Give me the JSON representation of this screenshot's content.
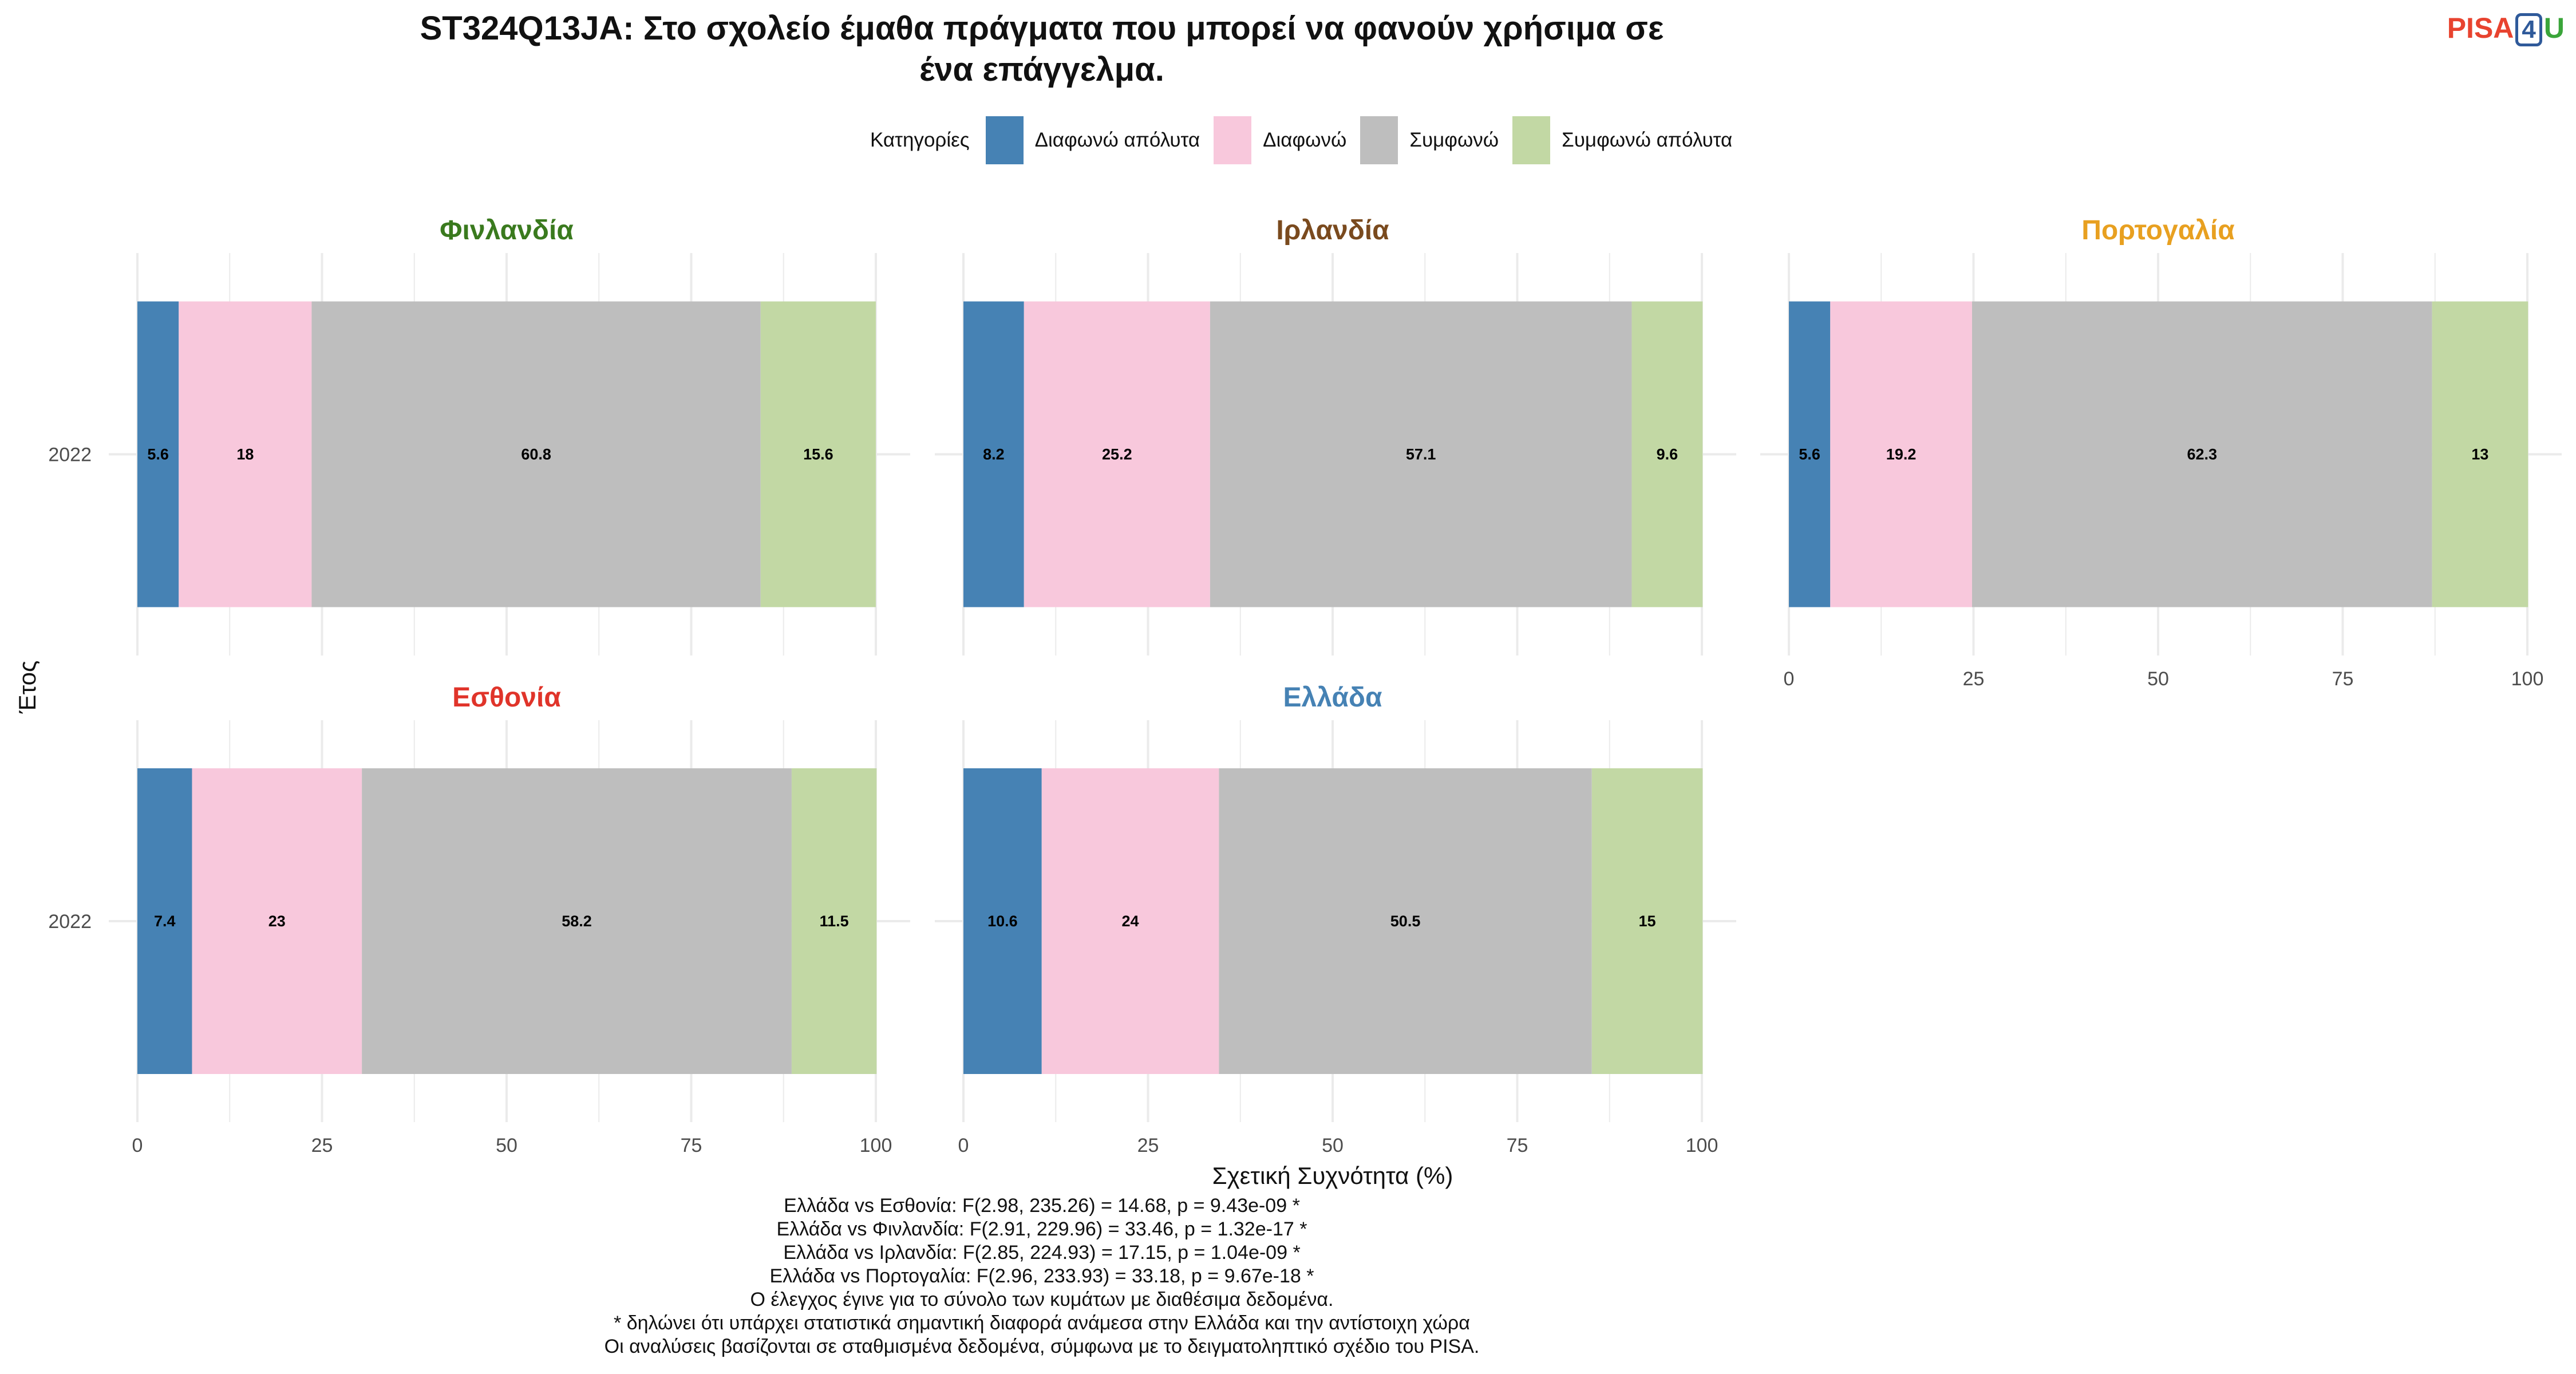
{
  "title_lines": [
    "ST324Q13JA: Στο σχολείο έμαθα πράγματα που μπορεί να φανούν χρήσιμα σε",
    "ένα επάγγελμα."
  ],
  "logo": {
    "pisa": "PISA",
    "four": "4",
    "u": "U"
  },
  "legend": {
    "title": "Κατηγορίες",
    "items": [
      {
        "label": "Διαφωνώ απόλυτα",
        "color": "#4682b4"
      },
      {
        "label": "Διαφωνώ",
        "color": "#f8c8dc"
      },
      {
        "label": "Συμφωνώ",
        "color": "#bebebe"
      },
      {
        "label": "Συμφωνώ απόλυτα",
        "color": "#c2d8a4"
      }
    ]
  },
  "chart_data": {
    "type": "bar",
    "orientation": "horizontal",
    "stacked": true,
    "xlabel": "Σχετική Συχνότητα (%)",
    "ylabel": "Έτος",
    "xlim": [
      0,
      100
    ],
    "xticks": [
      "0",
      "25",
      "50",
      "75",
      "100"
    ],
    "categories": [
      "2022"
    ],
    "series_names": [
      "Διαφωνώ απόλυτα",
      "Διαφωνώ",
      "Συμφωνώ",
      "Συμφωνώ απόλυτα"
    ],
    "panels": [
      {
        "country": "Φινλανδία",
        "color": "#3a7a1e",
        "year": "2022",
        "values": [
          5.6,
          18,
          60.8,
          15.6
        ],
        "labels": [
          "5.6",
          "18",
          "60.8",
          "15.6"
        ]
      },
      {
        "country": "Ιρλανδία",
        "color": "#7a4a1e",
        "year": "2022",
        "values": [
          8.2,
          25.2,
          57.1,
          9.6
        ],
        "labels": [
          "8.2",
          "25.2",
          "57.1",
          "9.6"
        ]
      },
      {
        "country": "Πορτογαλία",
        "color": "#e8a020",
        "year": "2022",
        "values": [
          5.6,
          19.2,
          62.3,
          13
        ],
        "labels": [
          "5.6",
          "19.2",
          "62.3",
          "13"
        ]
      },
      {
        "country": "Εσθονία",
        "color": "#e0342a",
        "year": "2022",
        "values": [
          7.4,
          23,
          58.2,
          11.5
        ],
        "labels": [
          "7.4",
          "23",
          "58.2",
          "11.5"
        ]
      },
      {
        "country": "Ελλάδα",
        "color": "#4682b4",
        "year": "2022",
        "values": [
          10.6,
          24,
          50.5,
          15
        ],
        "labels": [
          "10.6",
          "24",
          "50.5",
          "15"
        ]
      }
    ]
  },
  "footer_lines": [
    "Ελλάδα vs Εσθονία: F(2.98, 235.26) = 14.68, p = 9.43e-09 *",
    "Ελλάδα vs Φινλανδία: F(2.91, 229.96) = 33.46, p = 1.32e-17 *",
    "Ελλάδα vs Ιρλανδία: F(2.85, 224.93) = 17.15, p = 1.04e-09 *",
    "Ελλάδα vs Πορτογαλία: F(2.96, 233.93) = 33.18, p = 9.67e-18 *",
    "Ο έλεγχος έγινε για το σύνολο των κυμάτων με διαθέσιμα δεδομένα.",
    "* δηλώνει ότι υπάρχει στατιστικά σημαντική διαφορά ανάμεσα στην Ελλάδα και την αντίστοιχη χώρα",
    "Οι αναλύσεις βασίζονται σε σταθμισμένα δεδομένα, σύμφωνα με το δειγματοληπτικό σχέδιο του PISA."
  ]
}
